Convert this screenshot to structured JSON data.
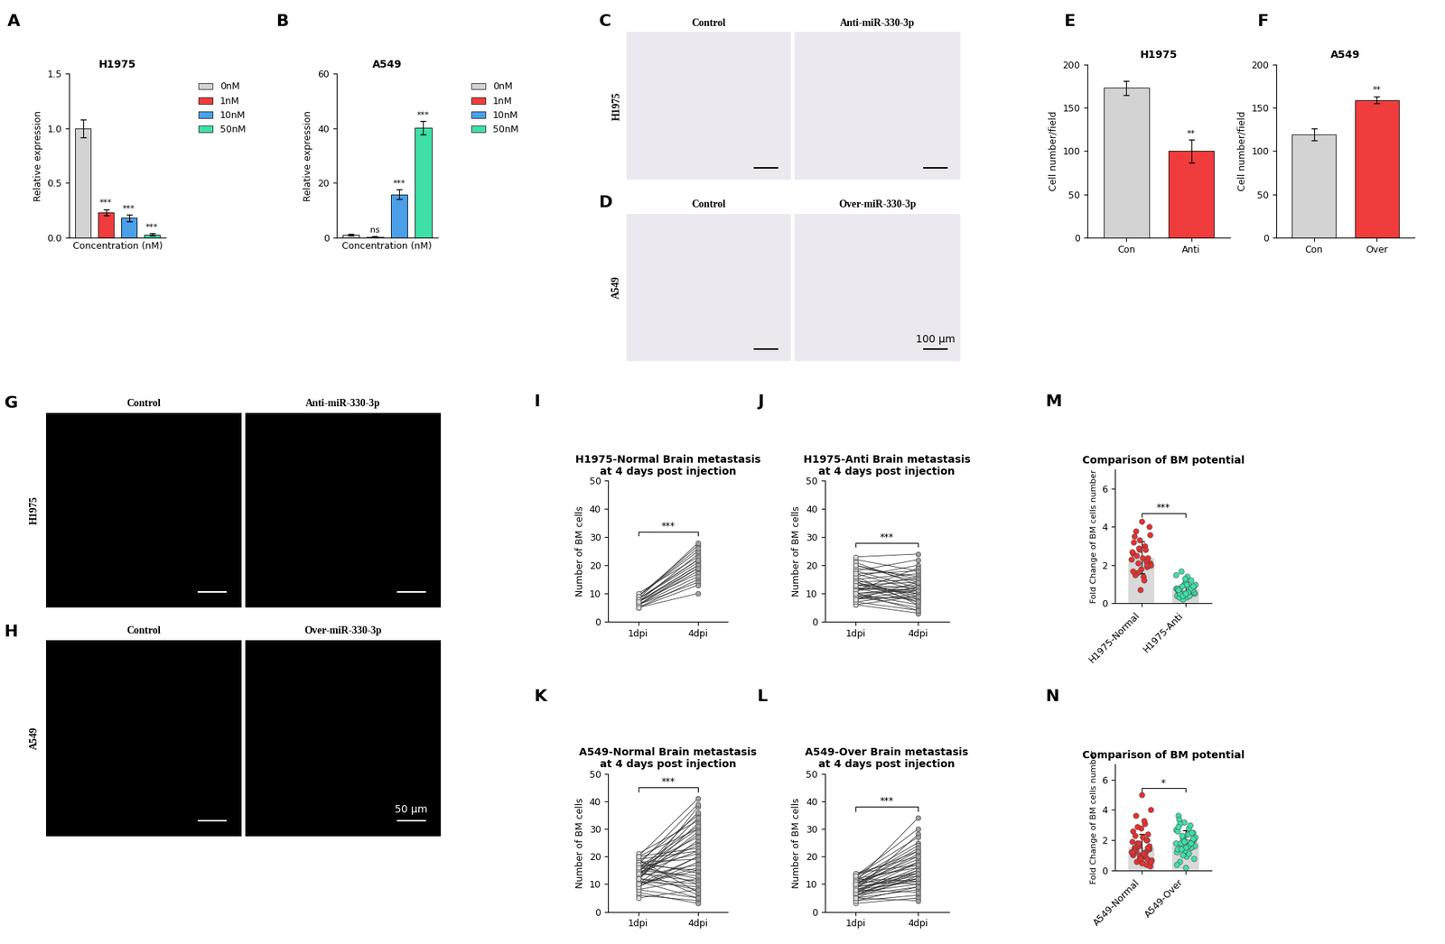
{
  "chart_data": [
    {
      "panel": "A",
      "type": "bar",
      "title": "H1975",
      "xlabel": "Concentration (nM)",
      "ylabel": "Relative expression",
      "categories": [
        "0nM",
        "1nM",
        "10nM",
        "50nM"
      ],
      "values": [
        1.0,
        0.23,
        0.18,
        0.03
      ],
      "errors": [
        0.08,
        0.03,
        0.03,
        0.01
      ],
      "colors": [
        "#d3d3d3",
        "#f03c3c",
        "#4a9fe8",
        "#3ee0a8"
      ],
      "annotations": [
        null,
        "***",
        "***",
        "***"
      ],
      "ylim": [
        0,
        1.5
      ],
      "yticks": [
        {
          "value": 0,
          "label": "0.0"
        },
        {
          "value": 0.5,
          "label": "0.5"
        },
        {
          "value": 1.0,
          "label": "1.0"
        },
        {
          "value": 1.5,
          "label": "1.5"
        }
      ],
      "tick_labels": "y",
      "legend": "upper left"
    },
    {
      "panel": "B",
      "type": "bar",
      "title": "A549",
      "xlabel": "Concentration (nM)",
      "ylabel": "Relative expression",
      "categories": [
        "0nM",
        "1nM",
        "10nM",
        "50nM"
      ],
      "values": [
        1.0,
        0.3,
        15.8,
        40.2
      ],
      "errors": [
        0.3,
        0.1,
        1.8,
        2.5
      ],
      "colors": [
        "#d3d3d3",
        "#f03c3c",
        "#4a9fe8",
        "#3ee0a8"
      ],
      "annotations": [
        null,
        "ns",
        "***",
        "***"
      ],
      "ylim": [
        0,
        60
      ],
      "yticks": [
        0,
        20,
        40,
        60
      ],
      "tick_labels": "y",
      "legend": "upper left"
    },
    {
      "panel": "C",
      "type": "image",
      "row_label": "H1975",
      "panels": [
        "Control",
        "Anti-miR-330-3p"
      ],
      "color": "#ece8f0"
    },
    {
      "panel": "D",
      "type": "image",
      "row_label": "A549",
      "panels": [
        "Control",
        "Over-miR-330-3p"
      ],
      "color": "#ece8f0",
      "scale_bar": "100 µm"
    },
    {
      "panel": "E",
      "type": "bar",
      "title": "H1975",
      "ylabel": "Cell number/field",
      "categories": [
        "Con",
        "Anti"
      ],
      "values": [
        173,
        100
      ],
      "errors": [
        8,
        13
      ],
      "colors": [
        "#d3d3d3",
        "#f03c3c"
      ],
      "annotations": [
        null,
        "**"
      ],
      "ylim": [
        0,
        200
      ],
      "yticks": [
        0,
        50,
        100,
        150,
        200
      ]
    },
    {
      "panel": "F",
      "type": "bar",
      "title": "A549",
      "ylabel": "Cell number/field",
      "categories": [
        "Con",
        "Over"
      ],
      "values": [
        119,
        159
      ],
      "errors": [
        7,
        4
      ],
      "colors": [
        "#d3d3d3",
        "#f03c3c"
      ],
      "annotations": [
        null,
        "**"
      ],
      "ylim": [
        0,
        200
      ],
      "yticks": [
        0,
        50,
        100,
        150,
        200
      ]
    },
    {
      "panel": "G",
      "type": "image",
      "row_label": "H1975",
      "panels": [
        "Control",
        "Anti-miR-330-3p"
      ],
      "color": "#000000"
    },
    {
      "panel": "H",
      "type": "image",
      "row_label": "A549",
      "panels": [
        "Control",
        "Over-miR-330-3p"
      ],
      "color": "#000000",
      "scale_bar": "50 µm"
    },
    {
      "panel": "I",
      "type": "paired",
      "title": "H1975-Normal Brain metastasis\nat 4 days post injection",
      "ylabel": "Number of BM cells",
      "categories": [
        "1dpi",
        "4dpi"
      ],
      "colors": [
        "#d9d9d9",
        "#a0a0a0"
      ],
      "significance": "***",
      "ylim": [
        0,
        50
      ],
      "yticks": [
        0,
        10,
        20,
        30,
        40,
        50
      ],
      "values": [
        [
          7,
          20
        ],
        [
          8,
          22
        ],
        [
          6,
          18
        ],
        [
          9,
          27
        ],
        [
          5,
          15
        ],
        [
          7,
          24
        ],
        [
          8,
          21
        ],
        [
          6,
          19
        ],
        [
          9,
          25
        ],
        [
          7,
          17
        ],
        [
          5,
          10
        ],
        [
          8,
          28
        ],
        [
          6,
          14
        ],
        [
          10,
          23
        ],
        [
          7,
          20
        ],
        [
          9,
          26
        ],
        [
          6,
          16
        ],
        [
          8,
          22
        ],
        [
          7,
          19
        ],
        [
          5,
          13
        ]
      ]
    },
    {
      "panel": "J",
      "type": "paired",
      "title": "H1975-Anti Brain metastasis\nat 4 days post injection",
      "ylabel": "Number of BM cells",
      "categories": [
        "1dpi",
        "4dpi"
      ],
      "colors": [
        "#d9d9d9",
        "#a0a0a0"
      ],
      "significance": "***",
      "ylim": [
        0,
        50
      ],
      "yticks": [
        0,
        10,
        20,
        30,
        40,
        50
      ],
      "values": [
        [
          12,
          10
        ],
        [
          15,
          8
        ],
        [
          8,
          11
        ],
        [
          20,
          14
        ],
        [
          10,
          6
        ],
        [
          18,
          12
        ],
        [
          6,
          9
        ],
        [
          14,
          15
        ],
        [
          22,
          18
        ],
        [
          9,
          5
        ],
        [
          11,
          13
        ],
        [
          16,
          20
        ],
        [
          7,
          4
        ],
        [
          13,
          10
        ],
        [
          19,
          16
        ],
        [
          10,
          12
        ],
        [
          23,
          24
        ],
        [
          12,
          7
        ],
        [
          8,
          14
        ],
        [
          17,
          11
        ],
        [
          14,
          9
        ],
        [
          6,
          3
        ],
        [
          11,
          16
        ],
        [
          21,
          13
        ],
        [
          9,
          8
        ],
        [
          15,
          17
        ],
        [
          13,
          12
        ],
        [
          10,
          4
        ],
        [
          18,
          22
        ],
        [
          7,
          10
        ],
        [
          12,
          11
        ],
        [
          16,
          6
        ],
        [
          11,
          19
        ],
        [
          20,
          15
        ],
        [
          9,
          12
        ],
        [
          14,
          7
        ],
        [
          8,
          9
        ],
        [
          13,
          14
        ],
        [
          17,
          18
        ],
        [
          10,
          11
        ]
      ]
    },
    {
      "panel": "M",
      "type": "dotbar",
      "title": "Comparison of BM potential",
      "ylabel": "Fold Change of BM cells number",
      "categories": [
        "H1975-Normal",
        "H1975-Anti"
      ],
      "values": [
        2.4,
        0.75
      ],
      "errors": [
        0.85,
        0.4
      ],
      "colors": [
        "#e83030",
        "#3ee0a8"
      ],
      "significance": "***",
      "ylim": [
        0,
        7
      ],
      "yticks": [
        0,
        2,
        4,
        6
      ],
      "points": [
        [
          2.3,
          2.8,
          1.9,
          3.5,
          4.3,
          2.1,
          1.6,
          3.0,
          2.6,
          0.7,
          2.4,
          3.8,
          1.4,
          2.0,
          2.9,
          2.2,
          3.2,
          1.8,
          4.0,
          2.5,
          1.2,
          2.7,
          3.3,
          2.0,
          1.5,
          2.4,
          3.6,
          2.1,
          2.8,
          1.7
        ],
        [
          0.8,
          0.5,
          1.2,
          0.6,
          0.3,
          0.9,
          1.7,
          0.7,
          0.4,
          1.0,
          0.6,
          0.8,
          1.4,
          0.5,
          0.2,
          0.9,
          0.7,
          1.1,
          0.6,
          0.4,
          0.8,
          1.5,
          0.5,
          0.7,
          0.3,
          1.0,
          0.6,
          0.9,
          0.4,
          0.8,
          1.3,
          0.7,
          0.5,
          0.6,
          1.0,
          0.4,
          0.8,
          0.7,
          0.5,
          0.9
        ]
      ]
    },
    {
      "panel": "K",
      "type": "paired",
      "title": "A549-Normal Brain metastasis\nat 4 days post injection",
      "ylabel": "Number of BM cells",
      "categories": [
        "1dpi",
        "4dpi"
      ],
      "colors": [
        "#d9d9d9",
        "#a0a0a0"
      ],
      "significance": "***",
      "ylim": [
        0,
        50
      ],
      "yticks": [
        0,
        10,
        20,
        30,
        40,
        50
      ],
      "values": [
        [
          15,
          30
        ],
        [
          12,
          8
        ],
        [
          18,
          35
        ],
        [
          10,
          20
        ],
        [
          20,
          41
        ],
        [
          8,
          5
        ],
        [
          14,
          25
        ],
        [
          16,
          12
        ],
        [
          11,
          38
        ],
        [
          19,
          22
        ],
        [
          6,
          4
        ],
        [
          13,
          28
        ],
        [
          17,
          15
        ],
        [
          9,
          18
        ],
        [
          21,
          33
        ],
        [
          12,
          10
        ],
        [
          15,
          6
        ],
        [
          10,
          26
        ],
        [
          18,
          14
        ],
        [
          7,
          3
        ],
        [
          14,
          36
        ],
        [
          16,
          21
        ],
        [
          11,
          9
        ],
        [
          20,
          30
        ],
        [
          13,
          17
        ],
        [
          8,
          12
        ],
        [
          15,
          24
        ],
        [
          19,
          7
        ],
        [
          12,
          32
        ],
        [
          10,
          15
        ],
        [
          17,
          39
        ],
        [
          14,
          11
        ],
        [
          9,
          20
        ],
        [
          16,
          27
        ],
        [
          11,
          5
        ],
        [
          18,
          19
        ],
        [
          13,
          34
        ],
        [
          5,
          8
        ],
        [
          15,
          13
        ],
        [
          20,
          23
        ],
        [
          12,
          29
        ],
        [
          10,
          16
        ],
        [
          17,
          10
        ],
        [
          14,
          22
        ],
        [
          16,
          31
        ]
      ]
    },
    {
      "panel": "L",
      "type": "paired",
      "title": "A549-Over Brain metastasis\nat 4 days post injection",
      "ylabel": "Number of BM cells",
      "categories": [
        "1dpi",
        "4dpi"
      ],
      "colors": [
        "#d9d9d9",
        "#a0a0a0"
      ],
      "significance": "***",
      "ylim": [
        0,
        50
      ],
      "yticks": [
        0,
        10,
        20,
        30,
        40,
        50
      ],
      "values": [
        [
          8,
          15
        ],
        [
          10,
          20
        ],
        [
          6,
          12
        ],
        [
          12,
          25
        ],
        [
          5,
          8
        ],
        [
          9,
          18
        ],
        [
          11,
          34
        ],
        [
          7,
          10
        ],
        [
          13,
          22
        ],
        [
          4,
          6
        ],
        [
          10,
          14
        ],
        [
          8,
          28
        ],
        [
          6,
          9
        ],
        [
          14,
          17
        ],
        [
          9,
          12
        ],
        [
          3,
          5
        ],
        [
          11,
          24
        ],
        [
          7,
          16
        ],
        [
          12,
          11
        ],
        [
          5,
          13
        ],
        [
          10,
          19
        ],
        [
          8,
          7
        ],
        [
          13,
          27
        ],
        [
          6,
          14
        ],
        [
          9,
          21
        ],
        [
          11,
          10
        ],
        [
          7,
          18
        ],
        [
          4,
          9
        ],
        [
          12,
          16
        ],
        [
          10,
          23
        ],
        [
          8,
          11
        ],
        [
          6,
          15
        ],
        [
          14,
          20
        ],
        [
          9,
          13
        ],
        [
          5,
          4
        ],
        [
          11,
          17
        ],
        [
          7,
          12
        ],
        [
          13,
          30
        ],
        [
          8,
          14
        ],
        [
          10,
          22
        ]
      ]
    },
    {
      "panel": "N",
      "type": "dotbar",
      "title": "Comparison of BM potential",
      "ylabel": "Fold Change of BM cells number",
      "categories": [
        "A549-Normal",
        "A549-Over"
      ],
      "values": [
        1.5,
        1.85
      ],
      "errors": [
        0.9,
        0.8
      ],
      "colors": [
        "#e83030",
        "#3ee0a8"
      ],
      "significance": "*",
      "ylim": [
        0,
        7
      ],
      "yticks": [
        0,
        2,
        4,
        6
      ],
      "points": [
        [
          1.2,
          0.8,
          2.0,
          1.5,
          5.0,
          0.5,
          1.8,
          3.1,
          1.0,
          0.7,
          2.4,
          1.3,
          0.9,
          4.0,
          1.6,
          0.4,
          1.1,
          2.8,
          1.4,
          0.6,
          3.3,
          1.9,
          1.0,
          0.8,
          1.5,
          2.2,
          0.3,
          1.7,
          1.2,
          2.6,
          0.9,
          1.4,
          3.6,
          1.1,
          0.7,
          1.8,
          2.0,
          1.3,
          0.5,
          1.6,
          2.9,
          1.0,
          1.2,
          0.8,
          1.5,
          2.3,
          1.1,
          0.6
        ],
        [
          1.8,
          2.2,
          1.5,
          3.6,
          0.9,
          2.0,
          1.7,
          2.8,
          1.2,
          3.2,
          1.9,
          0.6,
          2.4,
          1.6,
          2.1,
          3.0,
          1.4,
          0.2,
          2.5,
          1.8,
          1.1,
          2.7,
          2.0,
          1.5,
          3.4,
          1.9,
          0.8,
          2.3,
          1.7,
          2.6,
          1.3,
          2.0,
          3.1,
          1.6,
          2.2,
          1.0,
          1.8,
          2.9,
          1.5,
          2.1,
          1.4,
          2.4,
          0.4,
          1.9,
          2.5
        ]
      ]
    }
  ]
}
